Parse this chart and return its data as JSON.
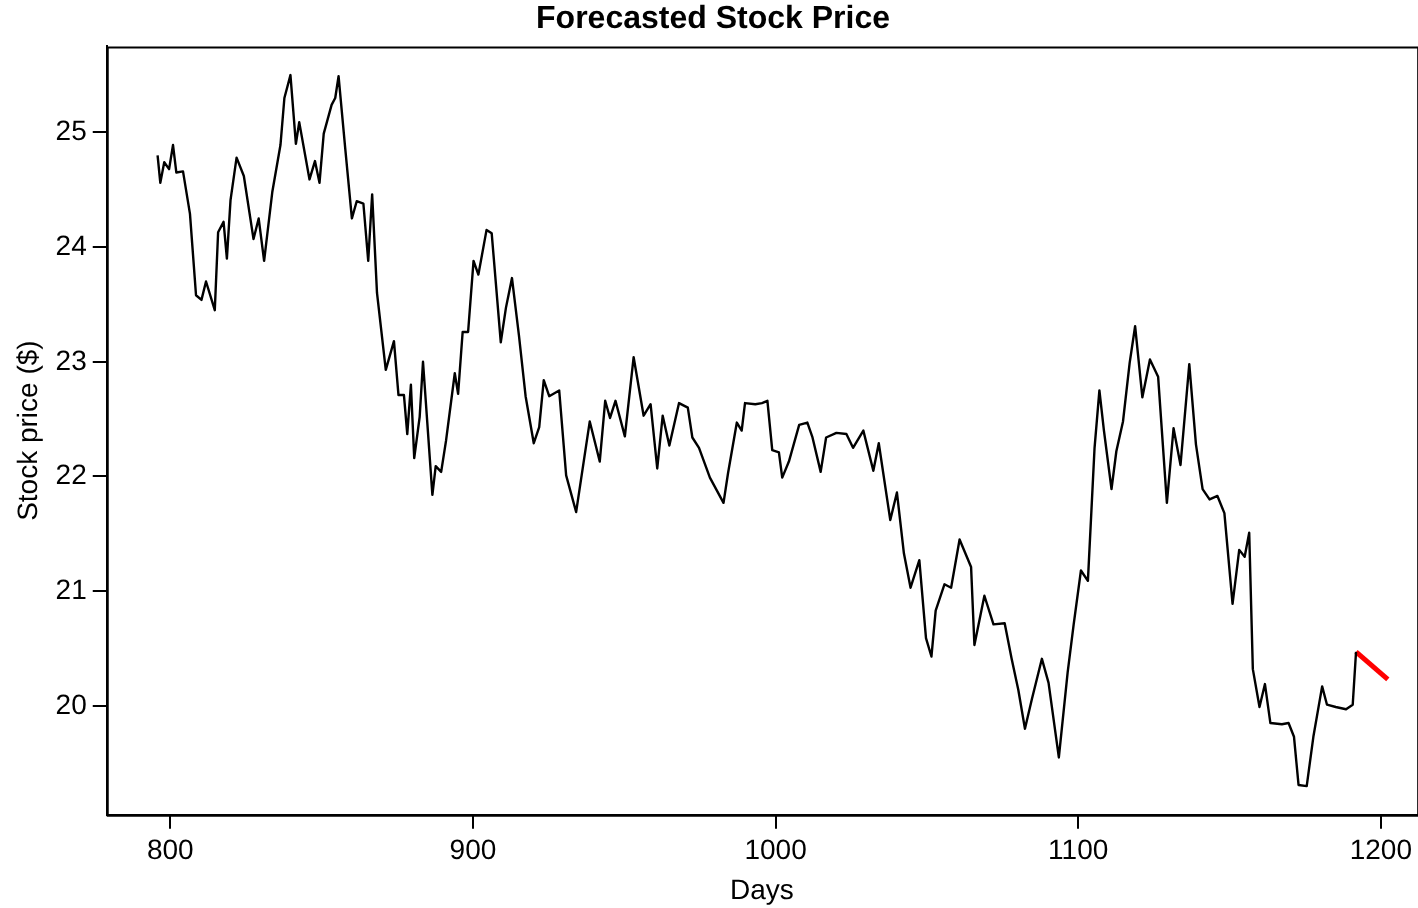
{
  "chart_data": {
    "type": "line",
    "title": "Forecasted Stock Price",
    "xlabel": "Days",
    "ylabel": "Stock price ($)",
    "xlim": [
      779,
      1212
    ],
    "ylim": [
      19.05,
      25.75
    ],
    "xticks": [
      800,
      900,
      1000,
      1100,
      1200
    ],
    "yticks": [
      20,
      21,
      22,
      23,
      24,
      25
    ],
    "grid": false,
    "legend": false,
    "marker": "none",
    "line_style": "solid",
    "series": [
      {
        "color": "#000000",
        "x": [
          795.8,
          796.7,
          798,
          799.6,
          800.9,
          802,
          804.2,
          806.5,
          808.5,
          810.3,
          811.8,
          814.7,
          815.8,
          817.6,
          818.7,
          819.9,
          821.9,
          824.3,
          827.5,
          829.2,
          831,
          833.7,
          836.4,
          837.7,
          839.7,
          841.5,
          842.6,
          846,
          847.8,
          849.3,
          850.7,
          853.3,
          854.5,
          855.6,
          857.8,
          860,
          861.6,
          863.8,
          865.4,
          866.7,
          868.3,
          871.2,
          873.9,
          875.4,
          877.2,
          878.3,
          879.5,
          880.6,
          882.4,
          883.5,
          886.6,
          887.7,
          889.5,
          891.1,
          894,
          895.1,
          896.6,
          898.4,
          900.2,
          901.8,
          904.5,
          906.2,
          909.2,
          910.9,
          912.9,
          915.2,
          917.4,
          920.1,
          921.9,
          923.4,
          925.2,
          928.5,
          930.8,
          934.1,
          938.6,
          941.9,
          943.7,
          945.3,
          947.1,
          950.2,
          953.1,
          956.4,
          958.7,
          960.9,
          962.7,
          964.9,
          968.1,
          971,
          972.5,
          974.7,
          978.3,
          982.8,
          984.3,
          987.2,
          988.8,
          989.9,
          993.3,
          995.5,
          997.3,
          998.9,
          1001.1,
          1002.2,
          1004.4,
          1007.8,
          1010.5,
          1012.2,
          1014.9,
          1016.7,
          1020.1,
          1023.4,
          1025.6,
          1029,
          1032.3,
          1034.1,
          1037.9,
          1040.1,
          1042.4,
          1044.6,
          1047.5,
          1049.7,
          1051.5,
          1052.9,
          1055.8,
          1058,
          1060.8,
          1064.6,
          1065.7,
          1069,
          1072,
          1075.7,
          1078,
          1080.2,
          1082.4,
          1084.7,
          1088,
          1090.2,
          1093.6,
          1096.5,
          1098.5,
          1100.9,
          1103.2,
          1105.4,
          1107,
          1108.5,
          1111,
          1112.6,
          1114.8,
          1117,
          1118.8,
          1121.2,
          1123.7,
          1126.4,
          1129.3,
          1131.5,
          1133.8,
          1136.7,
          1138.9,
          1141.1,
          1143.4,
          1146,
          1148.3,
          1151,
          1153.2,
          1155,
          1156.5,
          1157.7,
          1159.9,
          1161.7,
          1163.5,
          1167.3,
          1169.5,
          1171.3,
          1172.8,
          1175.5,
          1177.7,
          1180.6,
          1182.2,
          1185.1,
          1188.5,
          1190.7,
          1191.8
        ],
        "values": [
          24.8,
          24.56,
          24.74,
          24.68,
          24.89,
          24.65,
          24.66,
          24.29,
          23.58,
          23.54,
          23.7,
          23.45,
          24.13,
          24.22,
          23.9,
          24.41,
          24.78,
          24.62,
          24.07,
          24.25,
          23.88,
          24.48,
          24.89,
          25.3,
          25.5,
          24.9,
          25.09,
          24.59,
          24.75,
          24.56,
          24.99,
          25.24,
          25.3,
          25.49,
          24.86,
          24.25,
          24.4,
          24.38,
          23.88,
          24.46,
          23.6,
          22.93,
          23.18,
          22.71,
          22.71,
          22.37,
          22.8,
          22.16,
          22.52,
          23,
          21.84,
          22.09,
          22.04,
          22.31,
          22.9,
          22.72,
          23.26,
          23.26,
          23.88,
          23.76,
          24.15,
          24.12,
          23.17,
          23.47,
          23.73,
          23.23,
          22.7,
          22.29,
          22.43,
          22.84,
          22.7,
          22.75,
          22.01,
          21.69,
          22.48,
          22.13,
          22.66,
          22.51,
          22.66,
          22.35,
          23.04,
          22.53,
          22.63,
          22.07,
          22.53,
          22.27,
          22.64,
          22.6,
          22.34,
          22.25,
          21.99,
          21.77,
          22.03,
          22.47,
          22.4,
          22.64,
          22.63,
          22.64,
          22.66,
          22.23,
          22.21,
          21.99,
          22.13,
          22.45,
          22.47,
          22.34,
          22.04,
          22.34,
          22.38,
          22.37,
          22.25,
          22.4,
          22.05,
          22.29,
          21.62,
          21.86,
          21.33,
          21.03,
          21.27,
          20.59,
          20.43,
          20.83,
          21.06,
          21.03,
          21.45,
          21.21,
          20.53,
          20.96,
          20.71,
          20.72,
          20.41,
          20.14,
          19.8,
          20.06,
          20.41,
          20.2,
          19.55,
          20.29,
          20.71,
          21.18,
          21.09,
          22.25,
          22.75,
          22.4,
          21.89,
          22.22,
          22.48,
          22.99,
          23.31,
          22.69,
          23.02,
          22.87,
          21.77,
          22.42,
          22.1,
          22.98,
          22.28,
          21.89,
          21.8,
          21.83,
          21.68,
          20.89,
          21.36,
          21.3,
          21.51,
          20.32,
          19.99,
          20.19,
          19.85,
          19.84,
          19.85,
          19.73,
          19.31,
          19.3,
          19.73,
          20.17,
          20.01,
          19.99,
          19.97,
          20.01,
          20.47
        ]
      },
      {
        "color": "#ff0000",
        "x": [
          1191.8,
          1202.3
        ],
        "values": [
          20.47,
          20.23
        ]
      }
    ]
  }
}
